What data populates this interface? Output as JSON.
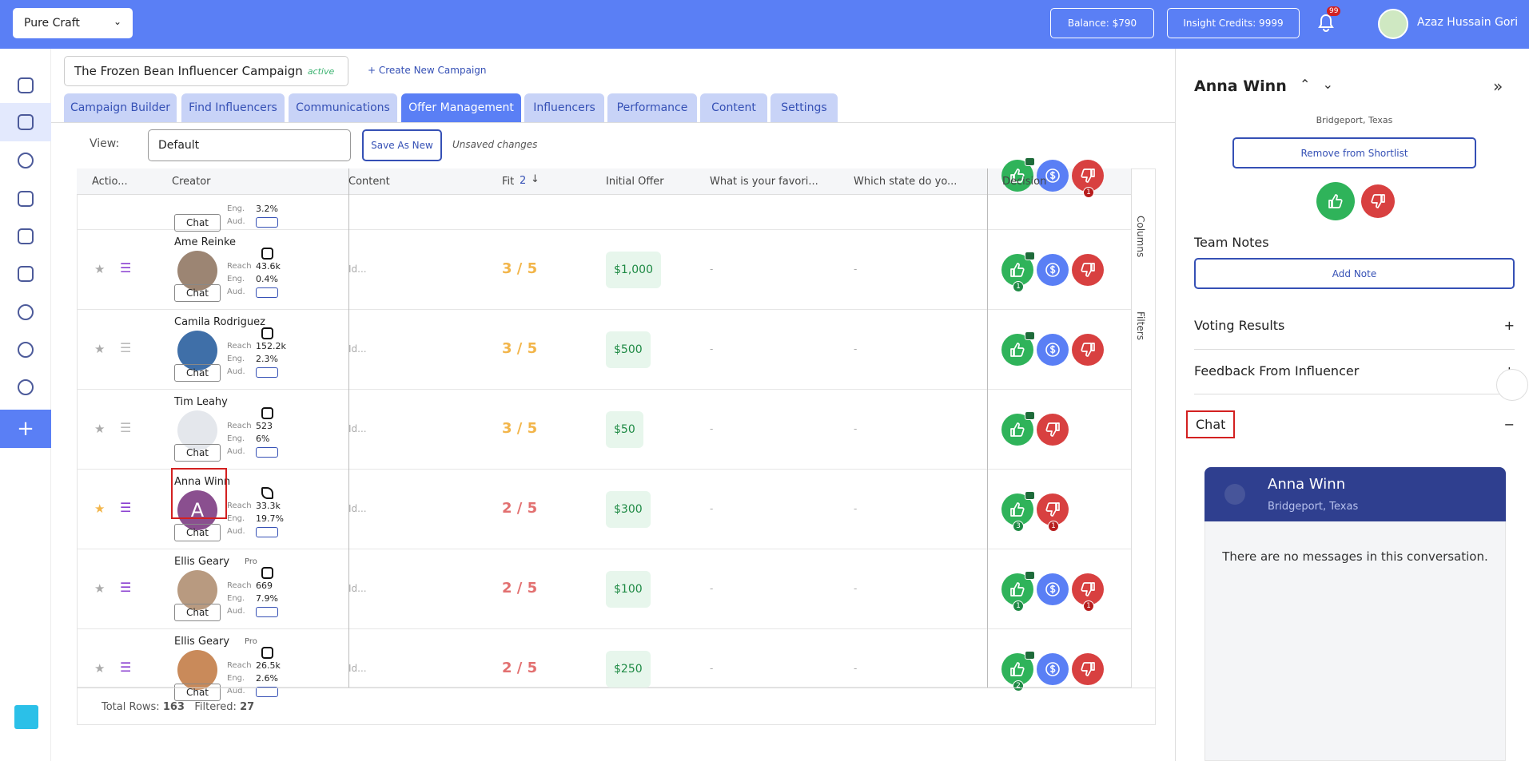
{
  "header": {
    "workspace": "Pure Craft",
    "balance": "Balance: $790",
    "credits": "Insight Credits: 9999",
    "notifications": "99",
    "user": "Azaz Hussain Gori"
  },
  "campaign": {
    "name": "The Frozen Bean Influencer Campaign",
    "status": "active",
    "create": "Create New Campaign"
  },
  "tabs": [
    "Campaign Builder",
    "Find Influencers",
    "Communications",
    "Offer Management",
    "Influencers",
    "Performance",
    "Content",
    "Settings"
  ],
  "active_tab": 3,
  "view": {
    "label": "View:",
    "value": "Default",
    "save": "Save As New",
    "unsaved": "Unsaved changes"
  },
  "table": {
    "columns": [
      "Actio...",
      "Creator",
      "Content",
      "Fit",
      "Initial Offer",
      "What is your favori...",
      "Which state do yo...",
      "Decision"
    ],
    "fit_sort": "2",
    "labels": {
      "reach": "Reach",
      "eng": "Eng.",
      "aud": "Aud.",
      "chat": "Chat",
      "pro": "Pro"
    },
    "rows": [
      {
        "eng": "3.2%",
        "down_badge": "1",
        "partial": true
      },
      {
        "name": "Ame Reinke",
        "reach": "43.6k",
        "eng": "0.4%",
        "content": "Id...",
        "fit": "3 / 5",
        "fit_color": "#f2b54a",
        "offer": "$1,000",
        "q1": "-",
        "q2": "-",
        "up_badge": "1",
        "dollar": true,
        "listed": true,
        "avatar": "#9c8573"
      },
      {
        "name": "Camila Rodriguez",
        "reach": "152.2k",
        "eng": "2.3%",
        "content": "Id...",
        "fit": "3 / 5",
        "fit_color": "#f2b54a",
        "offer": "$500",
        "q1": "-",
        "q2": "-",
        "dollar": true,
        "avatar": "#3f6fa8"
      },
      {
        "name": "Tim Leahy",
        "reach": "523",
        "eng": "6%",
        "content": "Id...",
        "fit": "3 / 5",
        "fit_color": "#f2b54a",
        "offer": "$50",
        "q1": "-",
        "q2": "-",
        "avatar": "#e4e7ec"
      },
      {
        "name": "Anna Winn",
        "initial": "A",
        "reach": "33.3k",
        "eng": "19.7%",
        "content": "Id...",
        "fit": "2 / 5",
        "fit_color": "#e27070",
        "offer": "$300",
        "q1": "-",
        "q2": "-",
        "up_badge": "3",
        "down_badge": "1",
        "starred": true,
        "listed": true,
        "tiktok": true,
        "avatar": "#8a4f8f",
        "highlight": true
      },
      {
        "name": "Ellis Geary",
        "pro": true,
        "reach": "669",
        "eng": "7.9%",
        "content": "Id...",
        "fit": "2 / 5",
        "fit_color": "#e27070",
        "offer": "$100",
        "q1": "-",
        "q2": "-",
        "up_badge": "1",
        "down_badge": "1",
        "dollar": true,
        "listed": true,
        "avatar": "#b89a80"
      },
      {
        "name": "Ellis Geary",
        "pro": true,
        "reach": "26.5k",
        "eng": "2.6%",
        "content": "Id...",
        "fit": "2 / 5",
        "fit_color": "#e27070",
        "offer": "$250",
        "q1": "-",
        "q2": "-",
        "up_badge": "2",
        "dollar": true,
        "listed": true,
        "avatar": "#c98a5a"
      }
    ],
    "side": [
      "Columns",
      "Filters"
    ],
    "total_label": "Total Rows:",
    "total": "163",
    "filtered_label": "Filtered:",
    "filtered": "27"
  },
  "panel": {
    "name": "Anna Winn",
    "location": "Bridgeport, Texas",
    "remove": "Remove from Shortlist",
    "team_notes": "Team Notes",
    "add_note": "Add Note",
    "sections": [
      "Voting Results",
      "Feedback From Influencer",
      "Chat"
    ],
    "chat_name": "Anna Winn",
    "chat_location": "Bridgeport, Texas",
    "no_messages": "There are no messages in this conversation."
  }
}
